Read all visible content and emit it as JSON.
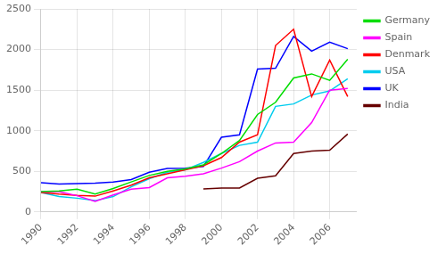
{
  "chart_data": {
    "type": "line",
    "x": [
      1990,
      1991,
      1992,
      1993,
      1994,
      1995,
      1996,
      1997,
      1998,
      1999,
      2000,
      2001,
      2002,
      2003,
      2004,
      2005,
      2006,
      2007
    ],
    "series": [
      {
        "name": "Germany",
        "color": "#00dd00",
        "values": [
          250,
          260,
          280,
          220,
          290,
          370,
          450,
          500,
          530,
          580,
          720,
          880,
          1200,
          1350,
          1650,
          1700,
          1620,
          1880
        ]
      },
      {
        "name": "Spain",
        "color": "#ff00ff",
        "values": [
          250,
          250,
          200,
          130,
          210,
          280,
          300,
          420,
          440,
          470,
          540,
          620,
          750,
          850,
          860,
          1100,
          1500,
          1520
        ]
      },
      {
        "name": "Denmark",
        "color": "#ff0000",
        "values": [
          240,
          220,
          205,
          195,
          260,
          330,
          420,
          470,
          520,
          570,
          670,
          860,
          950,
          2050,
          2250,
          1420,
          1870,
          1420
        ]
      },
      {
        "name": "USA",
        "color": "#00ccee",
        "values": [
          240,
          190,
          170,
          140,
          190,
          310,
          410,
          490,
          520,
          610,
          720,
          820,
          860,
          1300,
          1330,
          1440,
          1490,
          1640
        ]
      },
      {
        "name": "UK",
        "color": "#0000ff",
        "values": [
          360,
          345,
          350,
          355,
          370,
          400,
          490,
          535,
          540,
          560,
          920,
          950,
          1760,
          1770,
          2160,
          1980,
          2090,
          2010
        ]
      },
      {
        "name": "India",
        "color": "#660000",
        "values": [
          null,
          null,
          null,
          null,
          null,
          null,
          null,
          null,
          null,
          285,
          295,
          295,
          415,
          445,
          720,
          750,
          760,
          960
        ]
      }
    ],
    "xlim": [
      1990,
      2007.5
    ],
    "xticks": [
      1990,
      1992,
      1994,
      1996,
      1998,
      2000,
      2002,
      2004,
      2006
    ],
    "ylim": [
      0,
      2500
    ],
    "yticks": [
      0,
      500,
      1000,
      1500,
      2000,
      2500
    ],
    "grid": true,
    "legend": "right"
  }
}
